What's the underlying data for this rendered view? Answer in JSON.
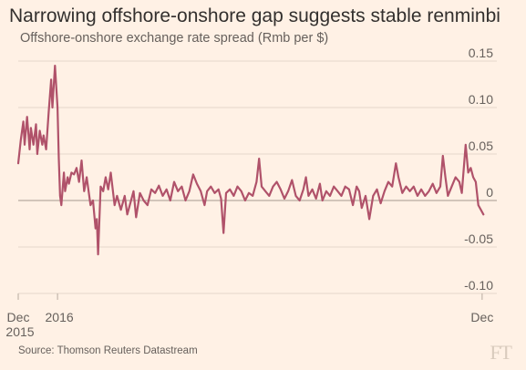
{
  "header": {
    "title": "Narrowing offshore-onshore gap suggests stable renminbi",
    "subtitle": "Offshore-onshore exchange rate spread (Rmb per $)"
  },
  "footer": {
    "source": "Source: Thomson Reuters Datastream",
    "logo": "FT"
  },
  "colors": {
    "background": "#fff1e5",
    "line": "#b0526a",
    "grid": "#e6d8ca",
    "zero_line": "#b7aba0",
    "tick_text": "#66605c"
  },
  "chart_data": {
    "type": "line",
    "title": "Narrowing offshore-onshore gap suggests stable renminbi",
    "subtitle": "Offshore-onshore exchange rate spread (Rmb per $)",
    "xlabel": "",
    "ylabel": "",
    "ylim": [
      -0.1,
      0.15
    ],
    "xlim": [
      "2015-12-01",
      "2016-12-09"
    ],
    "yticks": [
      {
        "value": 0.15,
        "label": "0.15"
      },
      {
        "value": 0.1,
        "label": "0.10"
      },
      {
        "value": 0.05,
        "label": "0.05"
      },
      {
        "value": 0,
        "label": "0"
      },
      {
        "value": -0.05,
        "label": "-0.05"
      },
      {
        "value": -0.1,
        "label": "-0.10"
      }
    ],
    "xticks": [
      {
        "date": "2015-12-01",
        "label": "Dec",
        "sublabel": "2015"
      },
      {
        "date": "2016-01-01",
        "label": "",
        "sublabel": ""
      },
      {
        "date": "2016-12-01",
        "label": "Dec",
        "sublabel": ""
      }
    ],
    "xticks_major_label": {
      "date": "2016-01-01",
      "label": "2016"
    },
    "grid": true,
    "y_axis_position": "right",
    "series": [
      {
        "name": "",
        "points": [
          [
            "2015-12-01",
            0.04
          ],
          [
            "2015-12-03",
            0.065
          ],
          [
            "2015-12-05",
            0.085
          ],
          [
            "2015-12-06",
            0.06
          ],
          [
            "2015-12-08",
            0.09
          ],
          [
            "2015-12-10",
            0.055
          ],
          [
            "2015-12-11",
            0.078
          ],
          [
            "2015-12-13",
            0.06
          ],
          [
            "2015-12-15",
            0.082
          ],
          [
            "2015-12-16",
            0.05
          ],
          [
            "2015-12-18",
            0.075
          ],
          [
            "2015-12-20",
            0.06
          ],
          [
            "2015-12-21",
            0.07
          ],
          [
            "2015-12-23",
            0.055
          ],
          [
            "2015-12-25",
            0.095
          ],
          [
            "2015-12-27",
            0.13
          ],
          [
            "2015-12-28",
            0.1
          ],
          [
            "2015-12-30",
            0.145
          ],
          [
            "2016-01-01",
            0.1
          ],
          [
            "2016-01-02",
            0.045
          ],
          [
            "2016-01-03",
            0.005
          ],
          [
            "2016-01-04",
            -0.005
          ],
          [
            "2016-01-06",
            0.03
          ],
          [
            "2016-01-07",
            0.01
          ],
          [
            "2016-01-09",
            0.025
          ],
          [
            "2016-01-10",
            0.018
          ],
          [
            "2016-01-12",
            0.03
          ],
          [
            "2016-01-14",
            0.028
          ],
          [
            "2016-01-16",
            0.035
          ],
          [
            "2016-01-18",
            0.02
          ],
          [
            "2016-01-20",
            0.043
          ],
          [
            "2016-01-22",
            0.01
          ],
          [
            "2016-01-24",
            0.025
          ],
          [
            "2016-01-26",
            0.005
          ],
          [
            "2016-01-27",
            -0.005
          ],
          [
            "2016-01-29",
            0.0
          ],
          [
            "2016-01-31",
            -0.03
          ],
          [
            "2016-02-01",
            -0.02
          ],
          [
            "2016-02-02",
            -0.058
          ],
          [
            "2016-02-04",
            0.015
          ],
          [
            "2016-02-06",
            0.01
          ],
          [
            "2016-02-08",
            0.025
          ],
          [
            "2016-02-10",
            0.012
          ],
          [
            "2016-02-12",
            0.03
          ],
          [
            "2016-02-15",
            -0.005
          ],
          [
            "2016-02-17",
            0.005
          ],
          [
            "2016-02-20",
            -0.01
          ],
          [
            "2016-02-23",
            0.005
          ],
          [
            "2016-02-25",
            -0.015
          ],
          [
            "2016-02-27",
            -0.005
          ],
          [
            "2016-03-01",
            0.01
          ],
          [
            "2016-03-03",
            -0.018
          ],
          [
            "2016-03-06",
            0.008
          ],
          [
            "2016-03-09",
            0.0
          ],
          [
            "2016-03-12",
            -0.005
          ],
          [
            "2016-03-15",
            0.012
          ],
          [
            "2016-03-18",
            0.008
          ],
          [
            "2016-03-21",
            0.016
          ],
          [
            "2016-03-24",
            0.005
          ],
          [
            "2016-03-27",
            0.012
          ],
          [
            "2016-03-30",
            0.0
          ],
          [
            "2016-04-02",
            0.02
          ],
          [
            "2016-04-05",
            0.01
          ],
          [
            "2016-04-08",
            0.015
          ],
          [
            "2016-04-11",
            0.0
          ],
          [
            "2016-04-14",
            0.01
          ],
          [
            "2016-04-17",
            0.028
          ],
          [
            "2016-04-20",
            0.018
          ],
          [
            "2016-04-23",
            0.01
          ],
          [
            "2016-04-26",
            -0.005
          ],
          [
            "2016-04-28",
            0.01
          ],
          [
            "2016-05-01",
            0.015
          ],
          [
            "2016-05-04",
            0.008
          ],
          [
            "2016-05-07",
            0.012
          ],
          [
            "2016-05-09",
            0.002
          ],
          [
            "2016-05-11",
            -0.035
          ],
          [
            "2016-05-13",
            0.008
          ],
          [
            "2016-05-16",
            0.012
          ],
          [
            "2016-05-19",
            0.005
          ],
          [
            "2016-05-22",
            0.015
          ],
          [
            "2016-05-25",
            0.01
          ],
          [
            "2016-05-28",
            0.0
          ],
          [
            "2016-05-31",
            0.008
          ],
          [
            "2016-06-03",
            0.005
          ],
          [
            "2016-06-06",
            0.02
          ],
          [
            "2016-06-08",
            0.045
          ],
          [
            "2016-06-10",
            0.015
          ],
          [
            "2016-06-13",
            0.01
          ],
          [
            "2016-06-16",
            0.005
          ],
          [
            "2016-06-19",
            0.015
          ],
          [
            "2016-06-22",
            0.02
          ],
          [
            "2016-06-25",
            0.012
          ],
          [
            "2016-06-28",
            0.002
          ],
          [
            "2016-07-01",
            0.01
          ],
          [
            "2016-07-04",
            0.022
          ],
          [
            "2016-07-07",
            0.005
          ],
          [
            "2016-07-10",
            0.0
          ],
          [
            "2016-07-13",
            0.012
          ],
          [
            "2016-07-15",
            0.025
          ],
          [
            "2016-07-17",
            0.005
          ],
          [
            "2016-07-20",
            0.012
          ],
          [
            "2016-07-23",
            0.002
          ],
          [
            "2016-07-26",
            0.018
          ],
          [
            "2016-07-28",
            0.0
          ],
          [
            "2016-07-31",
            0.01
          ],
          [
            "2016-08-03",
            0.005
          ],
          [
            "2016-08-06",
            0.015
          ],
          [
            "2016-08-09",
            0.01
          ],
          [
            "2016-08-12",
            0.005
          ],
          [
            "2016-08-15",
            0.015
          ],
          [
            "2016-08-18",
            0.012
          ],
          [
            "2016-08-21",
            -0.005
          ],
          [
            "2016-08-24",
            0.015
          ],
          [
            "2016-08-26",
            0.01
          ],
          [
            "2016-08-28",
            -0.008
          ],
          [
            "2016-08-31",
            0.005
          ],
          [
            "2016-09-03",
            -0.02
          ],
          [
            "2016-09-06",
            0.005
          ],
          [
            "2016-09-09",
            0.012
          ],
          [
            "2016-09-12",
            -0.003
          ],
          [
            "2016-09-15",
            0.01
          ],
          [
            "2016-09-18",
            0.02
          ],
          [
            "2016-09-21",
            0.015
          ],
          [
            "2016-09-24",
            0.04
          ],
          [
            "2016-09-26",
            0.025
          ],
          [
            "2016-09-29",
            0.008
          ],
          [
            "2016-10-02",
            0.015
          ],
          [
            "2016-10-05",
            0.01
          ],
          [
            "2016-10-08",
            0.015
          ],
          [
            "2016-10-11",
            0.005
          ],
          [
            "2016-10-14",
            0.012
          ],
          [
            "2016-10-17",
            0.005
          ],
          [
            "2016-10-20",
            0.01
          ],
          [
            "2016-10-23",
            0.018
          ],
          [
            "2016-10-26",
            0.008
          ],
          [
            "2016-10-29",
            0.015
          ],
          [
            "2016-10-31",
            0.048
          ],
          [
            "2016-11-02",
            0.025
          ],
          [
            "2016-11-04",
            0.005
          ],
          [
            "2016-11-07",
            0.015
          ],
          [
            "2016-11-10",
            0.025
          ],
          [
            "2016-11-13",
            0.02
          ],
          [
            "2016-11-15",
            0.008
          ],
          [
            "2016-11-18",
            0.06
          ],
          [
            "2016-11-20",
            0.03
          ],
          [
            "2016-11-22",
            0.035
          ],
          [
            "2016-11-24",
            0.025
          ],
          [
            "2016-11-26",
            0.02
          ],
          [
            "2016-11-28",
            -0.005
          ],
          [
            "2016-11-30",
            -0.01
          ],
          [
            "2016-12-02",
            -0.015
          ]
        ]
      }
    ]
  }
}
